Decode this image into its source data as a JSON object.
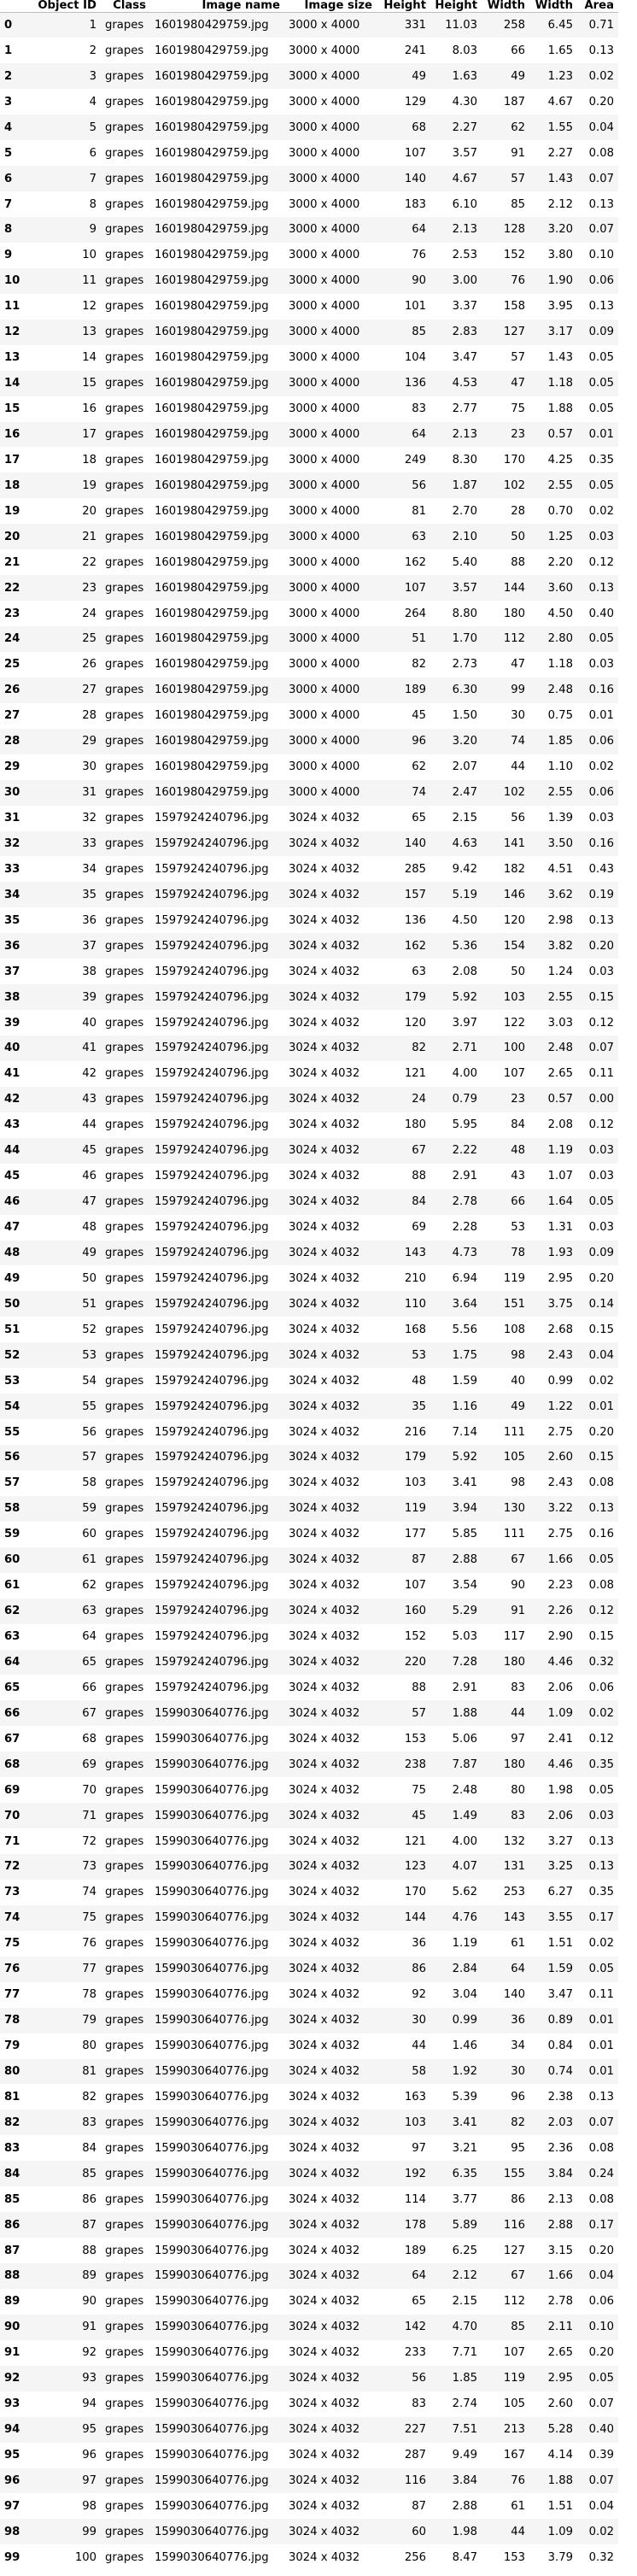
{
  "table": {
    "columns": [
      "Object ID",
      "Class",
      "Image name",
      "Image size",
      "Height",
      "Height",
      "Width",
      "Width",
      "Area"
    ],
    "rows": [
      [
        "0",
        "1",
        "grapes",
        "1601980429759.jpg",
        "3000 x 4000",
        "331",
        "11.03",
        "258",
        "6.45",
        "0.71"
      ],
      [
        "1",
        "2",
        "grapes",
        "1601980429759.jpg",
        "3000 x 4000",
        "241",
        "8.03",
        "66",
        "1.65",
        "0.13"
      ],
      [
        "2",
        "3",
        "grapes",
        "1601980429759.jpg",
        "3000 x 4000",
        "49",
        "1.63",
        "49",
        "1.23",
        "0.02"
      ],
      [
        "3",
        "4",
        "grapes",
        "1601980429759.jpg",
        "3000 x 4000",
        "129",
        "4.30",
        "187",
        "4.67",
        "0.20"
      ],
      [
        "4",
        "5",
        "grapes",
        "1601980429759.jpg",
        "3000 x 4000",
        "68",
        "2.27",
        "62",
        "1.55",
        "0.04"
      ],
      [
        "5",
        "6",
        "grapes",
        "1601980429759.jpg",
        "3000 x 4000",
        "107",
        "3.57",
        "91",
        "2.27",
        "0.08"
      ],
      [
        "6",
        "7",
        "grapes",
        "1601980429759.jpg",
        "3000 x 4000",
        "140",
        "4.67",
        "57",
        "1.43",
        "0.07"
      ],
      [
        "7",
        "8",
        "grapes",
        "1601980429759.jpg",
        "3000 x 4000",
        "183",
        "6.10",
        "85",
        "2.12",
        "0.13"
      ],
      [
        "8",
        "9",
        "grapes",
        "1601980429759.jpg",
        "3000 x 4000",
        "64",
        "2.13",
        "128",
        "3.20",
        "0.07"
      ],
      [
        "9",
        "10",
        "grapes",
        "1601980429759.jpg",
        "3000 x 4000",
        "76",
        "2.53",
        "152",
        "3.80",
        "0.10"
      ],
      [
        "10",
        "11",
        "grapes",
        "1601980429759.jpg",
        "3000 x 4000",
        "90",
        "3.00",
        "76",
        "1.90",
        "0.06"
      ],
      [
        "11",
        "12",
        "grapes",
        "1601980429759.jpg",
        "3000 x 4000",
        "101",
        "3.37",
        "158",
        "3.95",
        "0.13"
      ],
      [
        "12",
        "13",
        "grapes",
        "1601980429759.jpg",
        "3000 x 4000",
        "85",
        "2.83",
        "127",
        "3.17",
        "0.09"
      ],
      [
        "13",
        "14",
        "grapes",
        "1601980429759.jpg",
        "3000 x 4000",
        "104",
        "3.47",
        "57",
        "1.43",
        "0.05"
      ],
      [
        "14",
        "15",
        "grapes",
        "1601980429759.jpg",
        "3000 x 4000",
        "136",
        "4.53",
        "47",
        "1.18",
        "0.05"
      ],
      [
        "15",
        "16",
        "grapes",
        "1601980429759.jpg",
        "3000 x 4000",
        "83",
        "2.77",
        "75",
        "1.88",
        "0.05"
      ],
      [
        "16",
        "17",
        "grapes",
        "1601980429759.jpg",
        "3000 x 4000",
        "64",
        "2.13",
        "23",
        "0.57",
        "0.01"
      ],
      [
        "17",
        "18",
        "grapes",
        "1601980429759.jpg",
        "3000 x 4000",
        "249",
        "8.30",
        "170",
        "4.25",
        "0.35"
      ],
      [
        "18",
        "19",
        "grapes",
        "1601980429759.jpg",
        "3000 x 4000",
        "56",
        "1.87",
        "102",
        "2.55",
        "0.05"
      ],
      [
        "19",
        "20",
        "grapes",
        "1601980429759.jpg",
        "3000 x 4000",
        "81",
        "2.70",
        "28",
        "0.70",
        "0.02"
      ],
      [
        "20",
        "21",
        "grapes",
        "1601980429759.jpg",
        "3000 x 4000",
        "63",
        "2.10",
        "50",
        "1.25",
        "0.03"
      ],
      [
        "21",
        "22",
        "grapes",
        "1601980429759.jpg",
        "3000 x 4000",
        "162",
        "5.40",
        "88",
        "2.20",
        "0.12"
      ],
      [
        "22",
        "23",
        "grapes",
        "1601980429759.jpg",
        "3000 x 4000",
        "107",
        "3.57",
        "144",
        "3.60",
        "0.13"
      ],
      [
        "23",
        "24",
        "grapes",
        "1601980429759.jpg",
        "3000 x 4000",
        "264",
        "8.80",
        "180",
        "4.50",
        "0.40"
      ],
      [
        "24",
        "25",
        "grapes",
        "1601980429759.jpg",
        "3000 x 4000",
        "51",
        "1.70",
        "112",
        "2.80",
        "0.05"
      ],
      [
        "25",
        "26",
        "grapes",
        "1601980429759.jpg",
        "3000 x 4000",
        "82",
        "2.73",
        "47",
        "1.18",
        "0.03"
      ],
      [
        "26",
        "27",
        "grapes",
        "1601980429759.jpg",
        "3000 x 4000",
        "189",
        "6.30",
        "99",
        "2.48",
        "0.16"
      ],
      [
        "27",
        "28",
        "grapes",
        "1601980429759.jpg",
        "3000 x 4000",
        "45",
        "1.50",
        "30",
        "0.75",
        "0.01"
      ],
      [
        "28",
        "29",
        "grapes",
        "1601980429759.jpg",
        "3000 x 4000",
        "96",
        "3.20",
        "74",
        "1.85",
        "0.06"
      ],
      [
        "29",
        "30",
        "grapes",
        "1601980429759.jpg",
        "3000 x 4000",
        "62",
        "2.07",
        "44",
        "1.10",
        "0.02"
      ],
      [
        "30",
        "31",
        "grapes",
        "1601980429759.jpg",
        "3000 x 4000",
        "74",
        "2.47",
        "102",
        "2.55",
        "0.06"
      ],
      [
        "31",
        "32",
        "grapes",
        "1597924240796.jpg",
        "3024 x 4032",
        "65",
        "2.15",
        "56",
        "1.39",
        "0.03"
      ],
      [
        "32",
        "33",
        "grapes",
        "1597924240796.jpg",
        "3024 x 4032",
        "140",
        "4.63",
        "141",
        "3.50",
        "0.16"
      ],
      [
        "33",
        "34",
        "grapes",
        "1597924240796.jpg",
        "3024 x 4032",
        "285",
        "9.42",
        "182",
        "4.51",
        "0.43"
      ],
      [
        "34",
        "35",
        "grapes",
        "1597924240796.jpg",
        "3024 x 4032",
        "157",
        "5.19",
        "146",
        "3.62",
        "0.19"
      ],
      [
        "35",
        "36",
        "grapes",
        "1597924240796.jpg",
        "3024 x 4032",
        "136",
        "4.50",
        "120",
        "2.98",
        "0.13"
      ],
      [
        "36",
        "37",
        "grapes",
        "1597924240796.jpg",
        "3024 x 4032",
        "162",
        "5.36",
        "154",
        "3.82",
        "0.20"
      ],
      [
        "37",
        "38",
        "grapes",
        "1597924240796.jpg",
        "3024 x 4032",
        "63",
        "2.08",
        "50",
        "1.24",
        "0.03"
      ],
      [
        "38",
        "39",
        "grapes",
        "1597924240796.jpg",
        "3024 x 4032",
        "179",
        "5.92",
        "103",
        "2.55",
        "0.15"
      ],
      [
        "39",
        "40",
        "grapes",
        "1597924240796.jpg",
        "3024 x 4032",
        "120",
        "3.97",
        "122",
        "3.03",
        "0.12"
      ],
      [
        "40",
        "41",
        "grapes",
        "1597924240796.jpg",
        "3024 x 4032",
        "82",
        "2.71",
        "100",
        "2.48",
        "0.07"
      ],
      [
        "41",
        "42",
        "grapes",
        "1597924240796.jpg",
        "3024 x 4032",
        "121",
        "4.00",
        "107",
        "2.65",
        "0.11"
      ],
      [
        "42",
        "43",
        "grapes",
        "1597924240796.jpg",
        "3024 x 4032",
        "24",
        "0.79",
        "23",
        "0.57",
        "0.00"
      ],
      [
        "43",
        "44",
        "grapes",
        "1597924240796.jpg",
        "3024 x 4032",
        "180",
        "5.95",
        "84",
        "2.08",
        "0.12"
      ],
      [
        "44",
        "45",
        "grapes",
        "1597924240796.jpg",
        "3024 x 4032",
        "67",
        "2.22",
        "48",
        "1.19",
        "0.03"
      ],
      [
        "45",
        "46",
        "grapes",
        "1597924240796.jpg",
        "3024 x 4032",
        "88",
        "2.91",
        "43",
        "1.07",
        "0.03"
      ],
      [
        "46",
        "47",
        "grapes",
        "1597924240796.jpg",
        "3024 x 4032",
        "84",
        "2.78",
        "66",
        "1.64",
        "0.05"
      ],
      [
        "47",
        "48",
        "grapes",
        "1597924240796.jpg",
        "3024 x 4032",
        "69",
        "2.28",
        "53",
        "1.31",
        "0.03"
      ],
      [
        "48",
        "49",
        "grapes",
        "1597924240796.jpg",
        "3024 x 4032",
        "143",
        "4.73",
        "78",
        "1.93",
        "0.09"
      ],
      [
        "49",
        "50",
        "grapes",
        "1597924240796.jpg",
        "3024 x 4032",
        "210",
        "6.94",
        "119",
        "2.95",
        "0.20"
      ],
      [
        "50",
        "51",
        "grapes",
        "1597924240796.jpg",
        "3024 x 4032",
        "110",
        "3.64",
        "151",
        "3.75",
        "0.14"
      ],
      [
        "51",
        "52",
        "grapes",
        "1597924240796.jpg",
        "3024 x 4032",
        "168",
        "5.56",
        "108",
        "2.68",
        "0.15"
      ],
      [
        "52",
        "53",
        "grapes",
        "1597924240796.jpg",
        "3024 x 4032",
        "53",
        "1.75",
        "98",
        "2.43",
        "0.04"
      ],
      [
        "53",
        "54",
        "grapes",
        "1597924240796.jpg",
        "3024 x 4032",
        "48",
        "1.59",
        "40",
        "0.99",
        "0.02"
      ],
      [
        "54",
        "55",
        "grapes",
        "1597924240796.jpg",
        "3024 x 4032",
        "35",
        "1.16",
        "49",
        "1.22",
        "0.01"
      ],
      [
        "55",
        "56",
        "grapes",
        "1597924240796.jpg",
        "3024 x 4032",
        "216",
        "7.14",
        "111",
        "2.75",
        "0.20"
      ],
      [
        "56",
        "57",
        "grapes",
        "1597924240796.jpg",
        "3024 x 4032",
        "179",
        "5.92",
        "105",
        "2.60",
        "0.15"
      ],
      [
        "57",
        "58",
        "grapes",
        "1597924240796.jpg",
        "3024 x 4032",
        "103",
        "3.41",
        "98",
        "2.43",
        "0.08"
      ],
      [
        "58",
        "59",
        "grapes",
        "1597924240796.jpg",
        "3024 x 4032",
        "119",
        "3.94",
        "130",
        "3.22",
        "0.13"
      ],
      [
        "59",
        "60",
        "grapes",
        "1597924240796.jpg",
        "3024 x 4032",
        "177",
        "5.85",
        "111",
        "2.75",
        "0.16"
      ],
      [
        "60",
        "61",
        "grapes",
        "1597924240796.jpg",
        "3024 x 4032",
        "87",
        "2.88",
        "67",
        "1.66",
        "0.05"
      ],
      [
        "61",
        "62",
        "grapes",
        "1597924240796.jpg",
        "3024 x 4032",
        "107",
        "3.54",
        "90",
        "2.23",
        "0.08"
      ],
      [
        "62",
        "63",
        "grapes",
        "1597924240796.jpg",
        "3024 x 4032",
        "160",
        "5.29",
        "91",
        "2.26",
        "0.12"
      ],
      [
        "63",
        "64",
        "grapes",
        "1597924240796.jpg",
        "3024 x 4032",
        "152",
        "5.03",
        "117",
        "2.90",
        "0.15"
      ],
      [
        "64",
        "65",
        "grapes",
        "1597924240796.jpg",
        "3024 x 4032",
        "220",
        "7.28",
        "180",
        "4.46",
        "0.32"
      ],
      [
        "65",
        "66",
        "grapes",
        "1597924240796.jpg",
        "3024 x 4032",
        "88",
        "2.91",
        "83",
        "2.06",
        "0.06"
      ],
      [
        "66",
        "67",
        "grapes",
        "1599030640776.jpg",
        "3024 x 4032",
        "57",
        "1.88",
        "44",
        "1.09",
        "0.02"
      ],
      [
        "67",
        "68",
        "grapes",
        "1599030640776.jpg",
        "3024 x 4032",
        "153",
        "5.06",
        "97",
        "2.41",
        "0.12"
      ],
      [
        "68",
        "69",
        "grapes",
        "1599030640776.jpg",
        "3024 x 4032",
        "238",
        "7.87",
        "180",
        "4.46",
        "0.35"
      ],
      [
        "69",
        "70",
        "grapes",
        "1599030640776.jpg",
        "3024 x 4032",
        "75",
        "2.48",
        "80",
        "1.98",
        "0.05"
      ],
      [
        "70",
        "71",
        "grapes",
        "1599030640776.jpg",
        "3024 x 4032",
        "45",
        "1.49",
        "83",
        "2.06",
        "0.03"
      ],
      [
        "71",
        "72",
        "grapes",
        "1599030640776.jpg",
        "3024 x 4032",
        "121",
        "4.00",
        "132",
        "3.27",
        "0.13"
      ],
      [
        "72",
        "73",
        "grapes",
        "1599030640776.jpg",
        "3024 x 4032",
        "123",
        "4.07",
        "131",
        "3.25",
        "0.13"
      ],
      [
        "73",
        "74",
        "grapes",
        "1599030640776.jpg",
        "3024 x 4032",
        "170",
        "5.62",
        "253",
        "6.27",
        "0.35"
      ],
      [
        "74",
        "75",
        "grapes",
        "1599030640776.jpg",
        "3024 x 4032",
        "144",
        "4.76",
        "143",
        "3.55",
        "0.17"
      ],
      [
        "75",
        "76",
        "grapes",
        "1599030640776.jpg",
        "3024 x 4032",
        "36",
        "1.19",
        "61",
        "1.51",
        "0.02"
      ],
      [
        "76",
        "77",
        "grapes",
        "1599030640776.jpg",
        "3024 x 4032",
        "86",
        "2.84",
        "64",
        "1.59",
        "0.05"
      ],
      [
        "77",
        "78",
        "grapes",
        "1599030640776.jpg",
        "3024 x 4032",
        "92",
        "3.04",
        "140",
        "3.47",
        "0.11"
      ],
      [
        "78",
        "79",
        "grapes",
        "1599030640776.jpg",
        "3024 x 4032",
        "30",
        "0.99",
        "36",
        "0.89",
        "0.01"
      ],
      [
        "79",
        "80",
        "grapes",
        "1599030640776.jpg",
        "3024 x 4032",
        "44",
        "1.46",
        "34",
        "0.84",
        "0.01"
      ],
      [
        "80",
        "81",
        "grapes",
        "1599030640776.jpg",
        "3024 x 4032",
        "58",
        "1.92",
        "30",
        "0.74",
        "0.01"
      ],
      [
        "81",
        "82",
        "grapes",
        "1599030640776.jpg",
        "3024 x 4032",
        "163",
        "5.39",
        "96",
        "2.38",
        "0.13"
      ],
      [
        "82",
        "83",
        "grapes",
        "1599030640776.jpg",
        "3024 x 4032",
        "103",
        "3.41",
        "82",
        "2.03",
        "0.07"
      ],
      [
        "83",
        "84",
        "grapes",
        "1599030640776.jpg",
        "3024 x 4032",
        "97",
        "3.21",
        "95",
        "2.36",
        "0.08"
      ],
      [
        "84",
        "85",
        "grapes",
        "1599030640776.jpg",
        "3024 x 4032",
        "192",
        "6.35",
        "155",
        "3.84",
        "0.24"
      ],
      [
        "85",
        "86",
        "grapes",
        "1599030640776.jpg",
        "3024 x 4032",
        "114",
        "3.77",
        "86",
        "2.13",
        "0.08"
      ],
      [
        "86",
        "87",
        "grapes",
        "1599030640776.jpg",
        "3024 x 4032",
        "178",
        "5.89",
        "116",
        "2.88",
        "0.17"
      ],
      [
        "87",
        "88",
        "grapes",
        "1599030640776.jpg",
        "3024 x 4032",
        "189",
        "6.25",
        "127",
        "3.15",
        "0.20"
      ],
      [
        "88",
        "89",
        "grapes",
        "1599030640776.jpg",
        "3024 x 4032",
        "64",
        "2.12",
        "67",
        "1.66",
        "0.04"
      ],
      [
        "89",
        "90",
        "grapes",
        "1599030640776.jpg",
        "3024 x 4032",
        "65",
        "2.15",
        "112",
        "2.78",
        "0.06"
      ],
      [
        "90",
        "91",
        "grapes",
        "1599030640776.jpg",
        "3024 x 4032",
        "142",
        "4.70",
        "85",
        "2.11",
        "0.10"
      ],
      [
        "91",
        "92",
        "grapes",
        "1599030640776.jpg",
        "3024 x 4032",
        "233",
        "7.71",
        "107",
        "2.65",
        "0.20"
      ],
      [
        "92",
        "93",
        "grapes",
        "1599030640776.jpg",
        "3024 x 4032",
        "56",
        "1.85",
        "119",
        "2.95",
        "0.05"
      ],
      [
        "93",
        "94",
        "grapes",
        "1599030640776.jpg",
        "3024 x 4032",
        "83",
        "2.74",
        "105",
        "2.60",
        "0.07"
      ],
      [
        "94",
        "95",
        "grapes",
        "1599030640776.jpg",
        "3024 x 4032",
        "227",
        "7.51",
        "213",
        "5.28",
        "0.40"
      ],
      [
        "95",
        "96",
        "grapes",
        "1599030640776.jpg",
        "3024 x 4032",
        "287",
        "9.49",
        "167",
        "4.14",
        "0.39"
      ],
      [
        "96",
        "97",
        "grapes",
        "1599030640776.jpg",
        "3024 x 4032",
        "116",
        "3.84",
        "76",
        "1.88",
        "0.07"
      ],
      [
        "97",
        "98",
        "grapes",
        "1599030640776.jpg",
        "3024 x 4032",
        "87",
        "2.88",
        "61",
        "1.51",
        "0.04"
      ],
      [
        "98",
        "99",
        "grapes",
        "1599030640776.jpg",
        "3024 x 4032",
        "60",
        "1.98",
        "44",
        "1.09",
        "0.02"
      ],
      [
        "99",
        "100",
        "grapes",
        "1599030640776.jpg",
        "3024 x 4032",
        "256",
        "8.47",
        "153",
        "3.79",
        "0.32"
      ]
    ]
  }
}
